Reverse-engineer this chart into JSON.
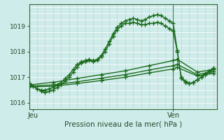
{
  "title": "",
  "xlabel": "Pression niveau de la mer( hPa )",
  "ylabel": "",
  "background_color": "#ceecea",
  "plot_bg_color": "#ceecea",
  "line_color": "#1a6b1a",
  "grid_color_h": "#ffffff",
  "grid_color_v": "#e8b8b8",
  "ylim": [
    1015.75,
    1019.85
  ],
  "xlim": [
    0,
    47
  ],
  "xtick_positions": [
    1,
    36
  ],
  "xtick_labels": [
    "Jeu",
    "Ven"
  ],
  "ytick_positions": [
    1016,
    1017,
    1018,
    1019
  ],
  "vline_x": 36,
  "series": [
    {
      "x": [
        0,
        1,
        2,
        3,
        4,
        5,
        6,
        7,
        8,
        9,
        10,
        11,
        12,
        13,
        14,
        15,
        16,
        17,
        18,
        19,
        20,
        21,
        22,
        23,
        24,
        25,
        26,
        27,
        28,
        29,
        30,
        31,
        32,
        33,
        34,
        35,
        36,
        37,
        38,
        39,
        40,
        41,
        42,
        43,
        44,
        45,
        46
      ],
      "y": [
        1016.75,
        1016.65,
        1016.55,
        1016.5,
        1016.5,
        1016.55,
        1016.6,
        1016.7,
        1016.8,
        1016.95,
        1017.1,
        1017.3,
        1017.5,
        1017.6,
        1017.65,
        1017.7,
        1017.65,
        1017.7,
        1017.85,
        1018.1,
        1018.4,
        1018.7,
        1018.95,
        1019.1,
        1019.2,
        1019.25,
        1019.3,
        1019.25,
        1019.2,
        1019.25,
        1019.35,
        1019.4,
        1019.45,
        1019.4,
        1019.3,
        1019.2,
        1019.1,
        1018.05,
        1017.0,
        1016.85,
        1016.75,
        1016.8,
        1016.9,
        1017.0,
        1017.15,
        1017.25,
        1017.35
      ]
    },
    {
      "x": [
        0,
        1,
        2,
        3,
        4,
        5,
        6,
        7,
        8,
        9,
        10,
        11,
        12,
        13,
        14,
        15,
        16,
        17,
        18,
        19,
        20,
        21,
        22,
        23,
        24,
        25,
        26,
        27,
        28,
        29,
        30,
        31,
        32,
        33,
        34,
        35,
        36,
        37,
        38,
        39,
        40,
        41,
        42,
        43,
        44,
        45,
        46
      ],
      "y": [
        1016.75,
        1016.65,
        1016.55,
        1016.45,
        1016.4,
        1016.45,
        1016.5,
        1016.6,
        1016.7,
        1016.85,
        1017.0,
        1017.2,
        1017.4,
        1017.55,
        1017.6,
        1017.65,
        1017.6,
        1017.65,
        1017.8,
        1018.0,
        1018.3,
        1018.6,
        1018.85,
        1019.0,
        1019.1,
        1019.1,
        1019.15,
        1019.1,
        1019.05,
        1019.05,
        1019.1,
        1019.1,
        1019.15,
        1019.1,
        1019.0,
        1018.9,
        1018.8,
        1018.0,
        1016.95,
        1016.8,
        1016.75,
        1016.8,
        1016.9,
        1017.0,
        1017.1,
        1017.2,
        1017.3
      ]
    },
    {
      "x": [
        0,
        6,
        12,
        18,
        24,
        30,
        36,
        37,
        42,
        46
      ],
      "y": [
        1016.7,
        1016.8,
        1016.95,
        1017.1,
        1017.25,
        1017.45,
        1017.65,
        1017.7,
        1017.2,
        1017.3
      ]
    },
    {
      "x": [
        0,
        6,
        12,
        18,
        24,
        30,
        36,
        37,
        42,
        46
      ],
      "y": [
        1016.65,
        1016.7,
        1016.82,
        1016.96,
        1017.1,
        1017.28,
        1017.45,
        1017.5,
        1017.1,
        1017.22
      ]
    },
    {
      "x": [
        0,
        6,
        12,
        18,
        24,
        30,
        36,
        37,
        42,
        46
      ],
      "y": [
        1016.62,
        1016.65,
        1016.75,
        1016.87,
        1017.0,
        1017.17,
        1017.32,
        1017.38,
        1017.05,
        1017.15
      ]
    }
  ],
  "marker": "+",
  "markersize": 4,
  "linewidth": 1.0
}
